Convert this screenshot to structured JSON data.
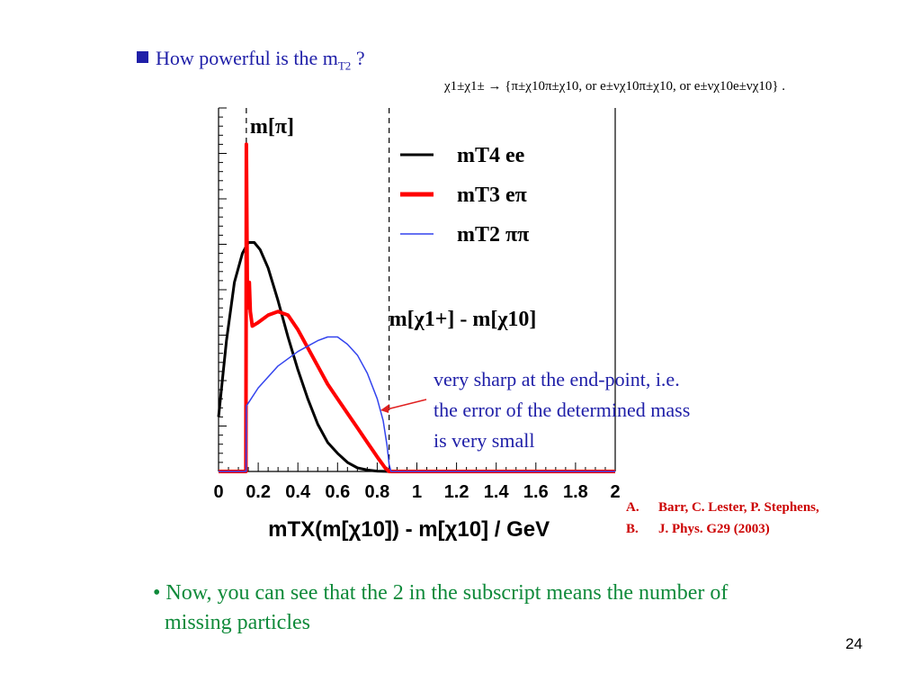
{
  "slide": {
    "title_prefix": "How powerful is the m",
    "title_subscript": "T2",
    "title_suffix": " ?",
    "page_number": "24"
  },
  "reaction_formula": "χ1±χ1± → {π±χ10π±χ10,  or e±νχ10π±χ10,  or e±νχ10e±νχ10} .",
  "annotation": {
    "line1": "very sharp at the end-point, i.e.",
    "line2": "the error of the determined mass",
    "line3": " is very small"
  },
  "references": {
    "items": [
      {
        "marker": "A.",
        "text": "Barr, C. Lester, P. Stephens,"
      },
      {
        "marker": "B.",
        "text": "J. Phys. G29 (2003)"
      }
    ]
  },
  "footer": {
    "line1": "• Now, you can see that the 2 in the subscript means the number of",
    "line2": "missing particles"
  },
  "colors": {
    "title": "#1f1fa8",
    "annotation": "#1f1fa8",
    "references": "#cc0000",
    "footer": "#0f8a3a",
    "arrow": "#e02020",
    "bullet": "#1f1fa8"
  },
  "chart_data": {
    "type": "line",
    "xlabel": "mTX(m[χ10]) - m[χ10] / GeV",
    "ylabel": "",
    "xlim": [
      0,
      2
    ],
    "ylim": [
      0,
      1
    ],
    "x_ticks": [
      "0",
      "0.2",
      "0.4",
      "0.6",
      "0.8",
      "1",
      "1.2",
      "1.4",
      "1.6",
      "1.8",
      "2"
    ],
    "legend": "top-right",
    "grid": false,
    "y_tick_labels_shown": false,
    "markers": [
      {
        "label": "m[π]",
        "x": 0.14
      },
      {
        "label": "m[χ1+] - m[χ10]",
        "x": 0.86
      }
    ],
    "series": [
      {
        "name": "mT4 ee",
        "color": "#000000",
        "width": 3,
        "x": [
          0.0,
          0.04,
          0.08,
          0.12,
          0.15,
          0.18,
          0.21,
          0.25,
          0.3,
          0.35,
          0.4,
          0.45,
          0.5,
          0.55,
          0.6,
          0.65,
          0.7,
          0.75,
          0.8,
          0.86,
          0.9,
          2.0
        ],
        "y": [
          0.15,
          0.36,
          0.52,
          0.6,
          0.63,
          0.63,
          0.61,
          0.56,
          0.47,
          0.37,
          0.28,
          0.2,
          0.13,
          0.08,
          0.05,
          0.025,
          0.01,
          0.004,
          0.001,
          0.0,
          0.0,
          0.0
        ]
      },
      {
        "name": "mT3 eπ",
        "color": "#ff0000",
        "width": 4,
        "x": [
          0.0,
          0.138,
          0.14,
          0.145,
          0.15,
          0.155,
          0.16,
          0.17,
          0.2,
          0.25,
          0.3,
          0.35,
          0.4,
          0.45,
          0.5,
          0.55,
          0.6,
          0.65,
          0.7,
          0.75,
          0.8,
          0.84,
          0.86,
          0.9,
          2.0
        ],
        "y": [
          0.0,
          0.0,
          0.9,
          0.5,
          0.45,
          0.52,
          0.44,
          0.4,
          0.41,
          0.43,
          0.44,
          0.43,
          0.39,
          0.34,
          0.29,
          0.24,
          0.2,
          0.16,
          0.12,
          0.08,
          0.04,
          0.01,
          0.0,
          0.0,
          0.0
        ]
      },
      {
        "name": "mT2 ππ",
        "color": "#3344ee",
        "width": 1.5,
        "x": [
          0.0,
          0.139,
          0.14,
          0.2,
          0.3,
          0.4,
          0.5,
          0.55,
          0.6,
          0.65,
          0.7,
          0.75,
          0.8,
          0.83,
          0.85,
          0.86,
          0.87,
          2.0
        ],
        "y": [
          0.0,
          0.0,
          0.18,
          0.23,
          0.29,
          0.33,
          0.36,
          0.37,
          0.37,
          0.35,
          0.32,
          0.27,
          0.2,
          0.14,
          0.07,
          0.02,
          0.0,
          0.0
        ]
      }
    ]
  }
}
